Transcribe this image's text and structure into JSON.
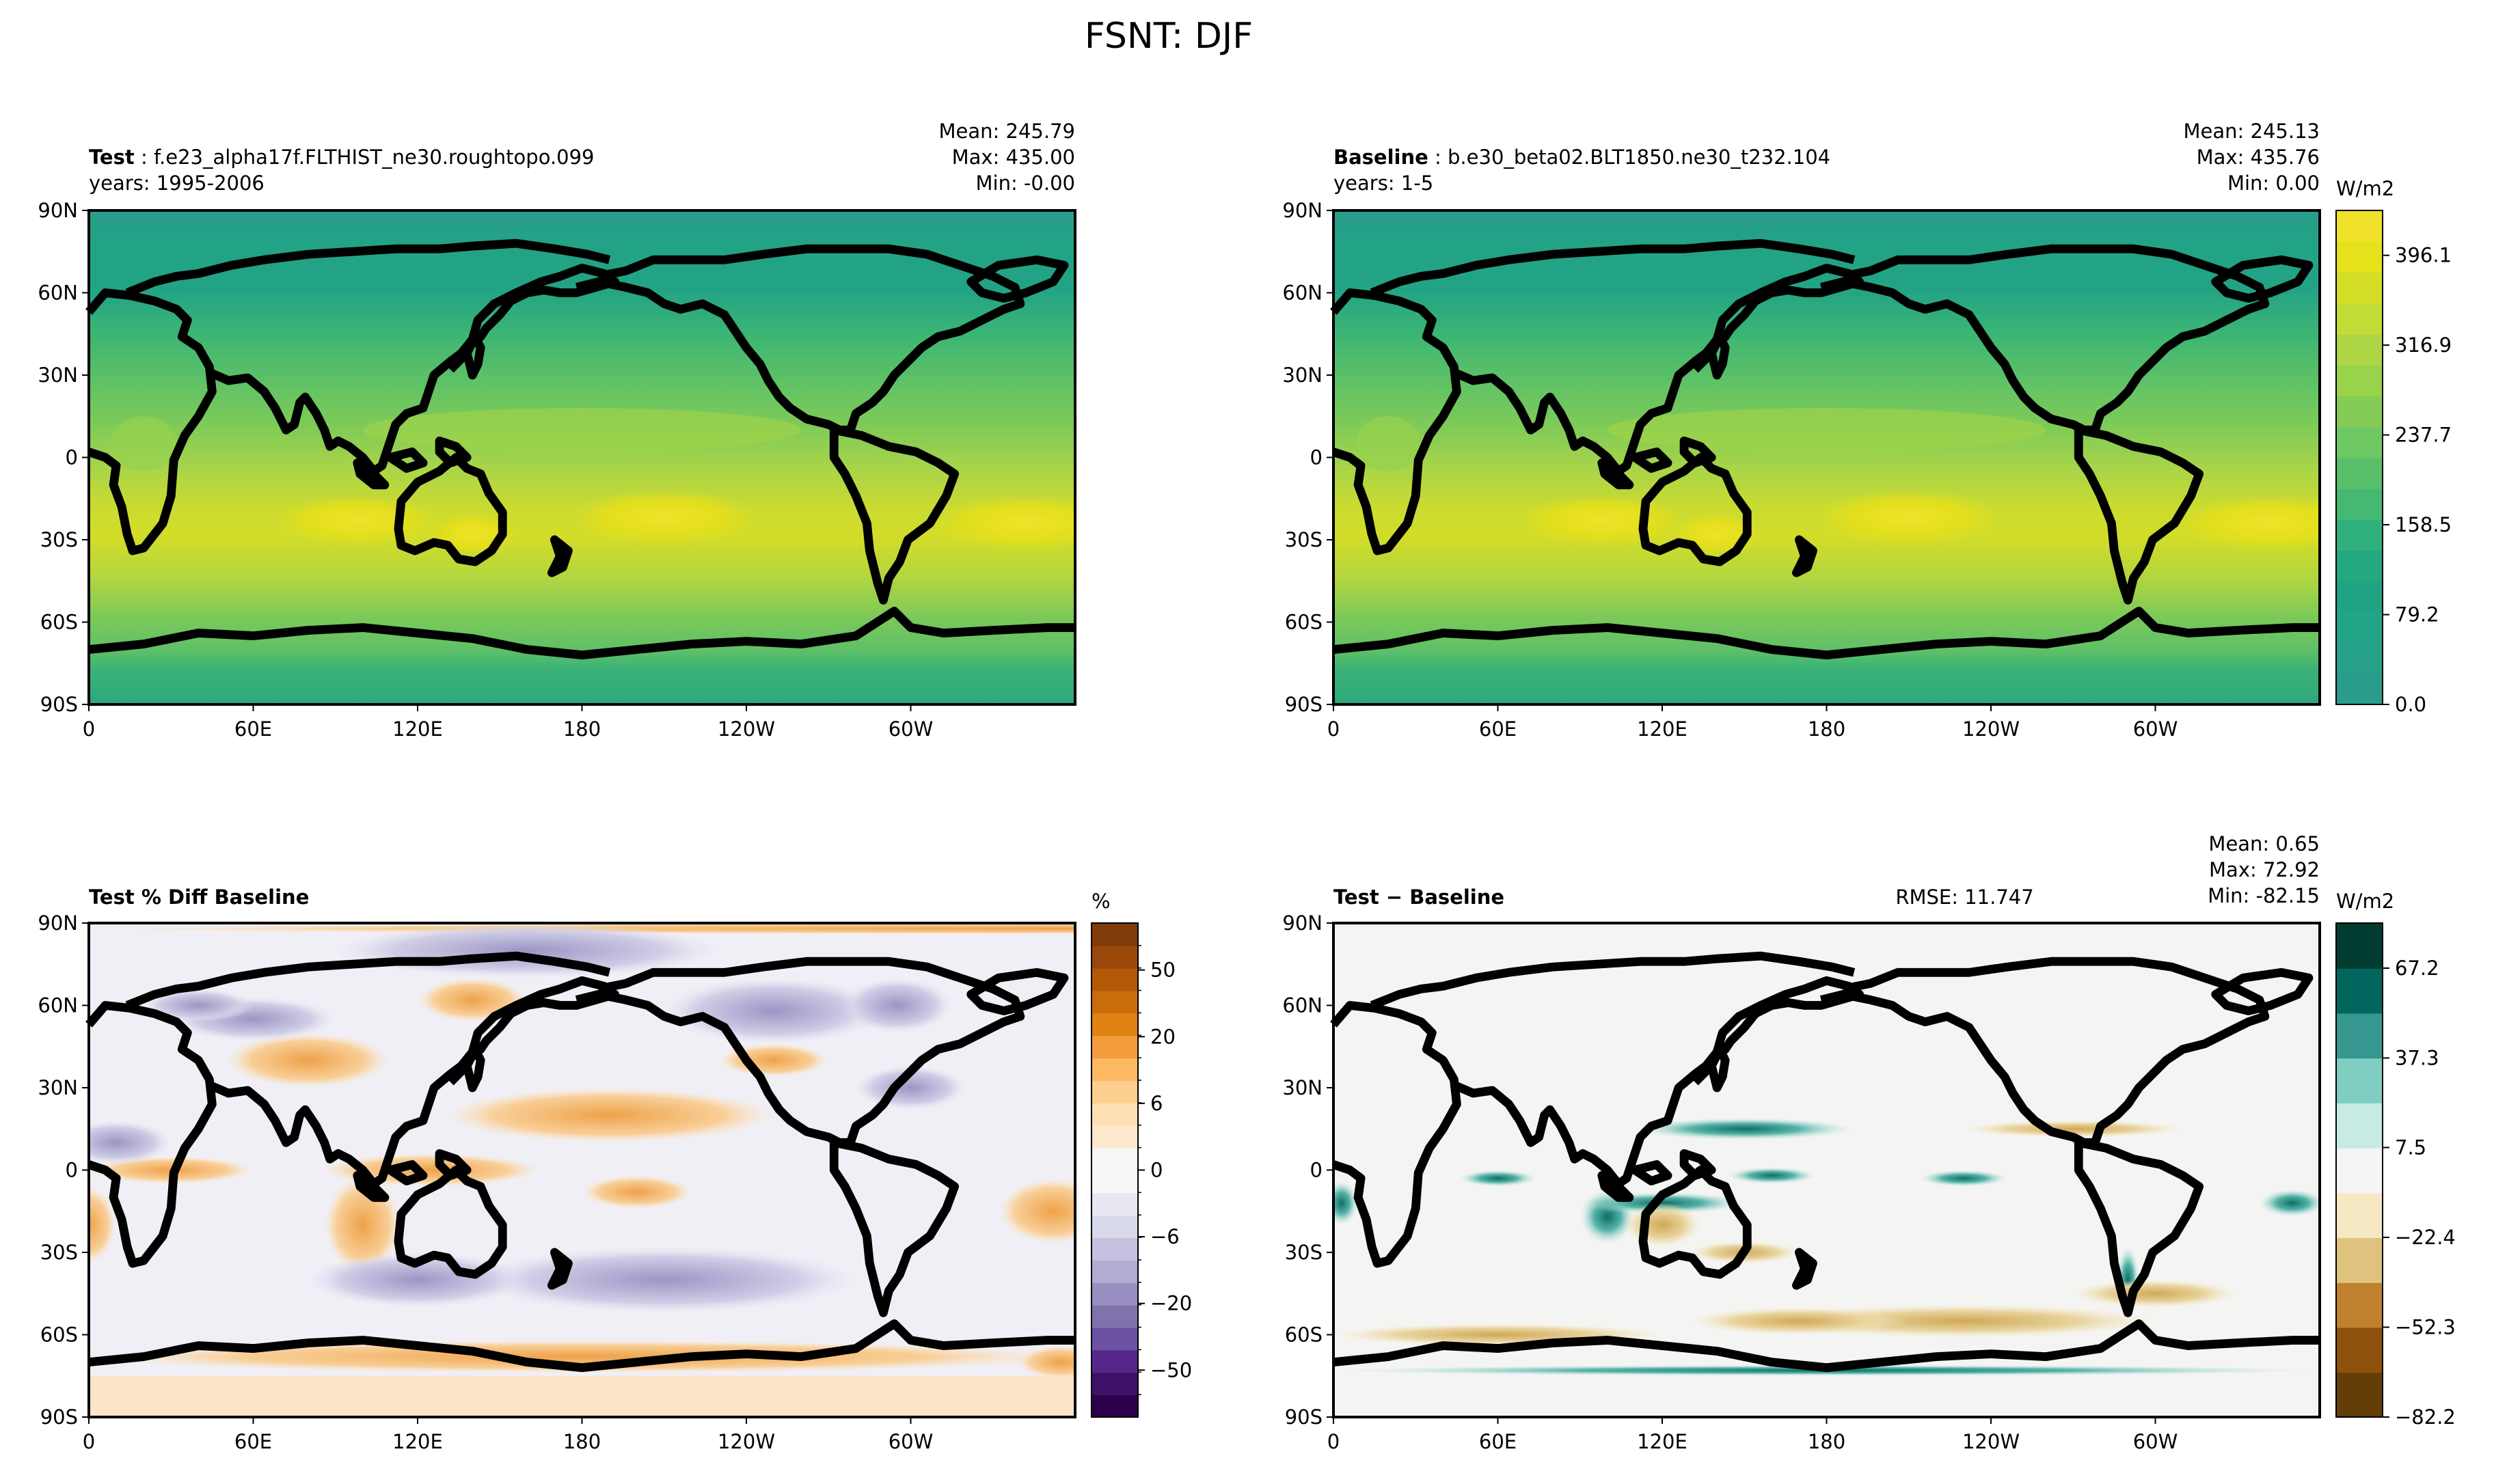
{
  "figure": {
    "title": "FSNT: DJF"
  },
  "axes": {
    "lat_ticks": [
      "90N",
      "60N",
      "30N",
      "0",
      "30S",
      "60S",
      "90S"
    ],
    "lon_ticks": [
      "0",
      "60E",
      "120E",
      "180",
      "120W",
      "60W"
    ]
  },
  "chart_data": [
    {
      "type": "heatmap",
      "panel": "test",
      "label_bold": "Test",
      "label_rest": ": f.e23_alpha17f.FLTHIST_ne30.roughtopo.099",
      "years": "years: 1995-2006",
      "stats": [
        "Mean: 245.79",
        "Max: 435.00",
        "Min: -0.00"
      ],
      "mean": 245.79,
      "max": 435.0,
      "min": -0.0,
      "xlim": [
        0,
        360
      ],
      "ylim": [
        -90,
        90
      ]
    },
    {
      "type": "heatmap",
      "panel": "baseline",
      "label_bold": "Baseline",
      "label_rest": ": b.e30_beta02.BLT1850.ne30_t232.104",
      "years": "years: 1-5",
      "stats": [
        "Mean: 245.13",
        "Max: 435.76",
        "Min:  0.00"
      ],
      "mean": 245.13,
      "max": 435.76,
      "min": 0.0,
      "xlim": [
        0,
        360
      ],
      "ylim": [
        -90,
        90
      ],
      "colorbar": {
        "unit": "W/m2",
        "ticks": [
          "396.1",
          "316.9",
          "237.7",
          "158.5",
          "79.2",
          "0.0"
        ],
        "range": [
          0.0,
          435.7
        ]
      }
    },
    {
      "type": "heatmap",
      "panel": "pct_diff",
      "label_bold": "Test % Diff Baseline",
      "xlim": [
        0,
        360
      ],
      "ylim": [
        -90,
        90
      ],
      "colorbar": {
        "unit": "%",
        "ticks": [
          "50",
          "20",
          "6",
          "0",
          "−6",
          "−20",
          "−50"
        ]
      }
    },
    {
      "type": "heatmap",
      "panel": "diff",
      "label_bold": "Test − Baseline",
      "rmse": "RMSE: 11.747",
      "stats": [
        "Mean:  0.65",
        "Max: 72.92",
        "Min: -82.15"
      ],
      "mean": 0.65,
      "max": 72.92,
      "min": -82.15,
      "xlim": [
        0,
        360
      ],
      "ylim": [
        -90,
        90
      ],
      "colorbar": {
        "unit": "W/m2",
        "ticks": [
          "67.2",
          "37.3",
          "7.5",
          "−22.4",
          "−52.3",
          "−82.2"
        ],
        "range": [
          -82.2,
          82.2
        ]
      }
    }
  ],
  "colors": {
    "viridis_levels": [
      "#2a9c8c",
      "#27a08a",
      "#22a586",
      "#1fa383",
      "#23a880",
      "#2fb07c",
      "#45b972",
      "#58c06a",
      "#6ec863",
      "#84cc55",
      "#99d24b",
      "#aed545",
      "#c3db36",
      "#d4dd27",
      "#e5e11a",
      "#f0e22a"
    ],
    "purple_orange": [
      "#2d004b",
      "#542788",
      "#8073ac",
      "#b2abd2",
      "#d8daeb",
      "#f7f7f7",
      "#fee0b6",
      "#fdb863",
      "#e08214",
      "#b35806",
      "#7f3b08"
    ],
    "brown_teal": [
      "#633e07",
      "#8c510a",
      "#bf812d",
      "#dfc27d",
      "#f6e8c3",
      "#f5f5f5",
      "#c7eae5",
      "#80cdc1",
      "#35978f",
      "#01665e",
      "#003c30"
    ]
  }
}
